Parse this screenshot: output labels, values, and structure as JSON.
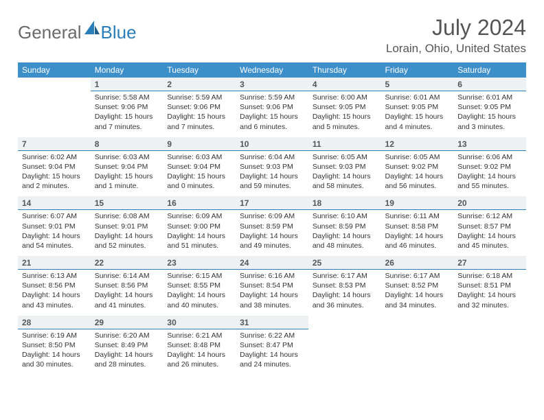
{
  "logo": {
    "text1": "General",
    "text2": "Blue",
    "color1": "#6a6a6a",
    "color2": "#2a7fb8"
  },
  "title": "July 2024",
  "location": "Lorain, Ohio, United States",
  "header_bg": "#3d8fc9",
  "daynum_bg": "#eef1f3",
  "daynum_border": "#2a7fb8",
  "days_of_week": [
    "Sunday",
    "Monday",
    "Tuesday",
    "Wednesday",
    "Thursday",
    "Friday",
    "Saturday"
  ],
  "weeks": [
    [
      {
        "day": "",
        "sunrise": "",
        "sunset": "",
        "daylight": ""
      },
      {
        "day": "1",
        "sunrise": "Sunrise: 5:58 AM",
        "sunset": "Sunset: 9:06 PM",
        "daylight": "Daylight: 15 hours and 7 minutes."
      },
      {
        "day": "2",
        "sunrise": "Sunrise: 5:59 AM",
        "sunset": "Sunset: 9:06 PM",
        "daylight": "Daylight: 15 hours and 7 minutes."
      },
      {
        "day": "3",
        "sunrise": "Sunrise: 5:59 AM",
        "sunset": "Sunset: 9:06 PM",
        "daylight": "Daylight: 15 hours and 6 minutes."
      },
      {
        "day": "4",
        "sunrise": "Sunrise: 6:00 AM",
        "sunset": "Sunset: 9:05 PM",
        "daylight": "Daylight: 15 hours and 5 minutes."
      },
      {
        "day": "5",
        "sunrise": "Sunrise: 6:01 AM",
        "sunset": "Sunset: 9:05 PM",
        "daylight": "Daylight: 15 hours and 4 minutes."
      },
      {
        "day": "6",
        "sunrise": "Sunrise: 6:01 AM",
        "sunset": "Sunset: 9:05 PM",
        "daylight": "Daylight: 15 hours and 3 minutes."
      }
    ],
    [
      {
        "day": "7",
        "sunrise": "Sunrise: 6:02 AM",
        "sunset": "Sunset: 9:04 PM",
        "daylight": "Daylight: 15 hours and 2 minutes."
      },
      {
        "day": "8",
        "sunrise": "Sunrise: 6:03 AM",
        "sunset": "Sunset: 9:04 PM",
        "daylight": "Daylight: 15 hours and 1 minute."
      },
      {
        "day": "9",
        "sunrise": "Sunrise: 6:03 AM",
        "sunset": "Sunset: 9:04 PM",
        "daylight": "Daylight: 15 hours and 0 minutes."
      },
      {
        "day": "10",
        "sunrise": "Sunrise: 6:04 AM",
        "sunset": "Sunset: 9:03 PM",
        "daylight": "Daylight: 14 hours and 59 minutes."
      },
      {
        "day": "11",
        "sunrise": "Sunrise: 6:05 AM",
        "sunset": "Sunset: 9:03 PM",
        "daylight": "Daylight: 14 hours and 58 minutes."
      },
      {
        "day": "12",
        "sunrise": "Sunrise: 6:05 AM",
        "sunset": "Sunset: 9:02 PM",
        "daylight": "Daylight: 14 hours and 56 minutes."
      },
      {
        "day": "13",
        "sunrise": "Sunrise: 6:06 AM",
        "sunset": "Sunset: 9:02 PM",
        "daylight": "Daylight: 14 hours and 55 minutes."
      }
    ],
    [
      {
        "day": "14",
        "sunrise": "Sunrise: 6:07 AM",
        "sunset": "Sunset: 9:01 PM",
        "daylight": "Daylight: 14 hours and 54 minutes."
      },
      {
        "day": "15",
        "sunrise": "Sunrise: 6:08 AM",
        "sunset": "Sunset: 9:01 PM",
        "daylight": "Daylight: 14 hours and 52 minutes."
      },
      {
        "day": "16",
        "sunrise": "Sunrise: 6:09 AM",
        "sunset": "Sunset: 9:00 PM",
        "daylight": "Daylight: 14 hours and 51 minutes."
      },
      {
        "day": "17",
        "sunrise": "Sunrise: 6:09 AM",
        "sunset": "Sunset: 8:59 PM",
        "daylight": "Daylight: 14 hours and 49 minutes."
      },
      {
        "day": "18",
        "sunrise": "Sunrise: 6:10 AM",
        "sunset": "Sunset: 8:59 PM",
        "daylight": "Daylight: 14 hours and 48 minutes."
      },
      {
        "day": "19",
        "sunrise": "Sunrise: 6:11 AM",
        "sunset": "Sunset: 8:58 PM",
        "daylight": "Daylight: 14 hours and 46 minutes."
      },
      {
        "day": "20",
        "sunrise": "Sunrise: 6:12 AM",
        "sunset": "Sunset: 8:57 PM",
        "daylight": "Daylight: 14 hours and 45 minutes."
      }
    ],
    [
      {
        "day": "21",
        "sunrise": "Sunrise: 6:13 AM",
        "sunset": "Sunset: 8:56 PM",
        "daylight": "Daylight: 14 hours and 43 minutes."
      },
      {
        "day": "22",
        "sunrise": "Sunrise: 6:14 AM",
        "sunset": "Sunset: 8:56 PM",
        "daylight": "Daylight: 14 hours and 41 minutes."
      },
      {
        "day": "23",
        "sunrise": "Sunrise: 6:15 AM",
        "sunset": "Sunset: 8:55 PM",
        "daylight": "Daylight: 14 hours and 40 minutes."
      },
      {
        "day": "24",
        "sunrise": "Sunrise: 6:16 AM",
        "sunset": "Sunset: 8:54 PM",
        "daylight": "Daylight: 14 hours and 38 minutes."
      },
      {
        "day": "25",
        "sunrise": "Sunrise: 6:17 AM",
        "sunset": "Sunset: 8:53 PM",
        "daylight": "Daylight: 14 hours and 36 minutes."
      },
      {
        "day": "26",
        "sunrise": "Sunrise: 6:17 AM",
        "sunset": "Sunset: 8:52 PM",
        "daylight": "Daylight: 14 hours and 34 minutes."
      },
      {
        "day": "27",
        "sunrise": "Sunrise: 6:18 AM",
        "sunset": "Sunset: 8:51 PM",
        "daylight": "Daylight: 14 hours and 32 minutes."
      }
    ],
    [
      {
        "day": "28",
        "sunrise": "Sunrise: 6:19 AM",
        "sunset": "Sunset: 8:50 PM",
        "daylight": "Daylight: 14 hours and 30 minutes."
      },
      {
        "day": "29",
        "sunrise": "Sunrise: 6:20 AM",
        "sunset": "Sunset: 8:49 PM",
        "daylight": "Daylight: 14 hours and 28 minutes."
      },
      {
        "day": "30",
        "sunrise": "Sunrise: 6:21 AM",
        "sunset": "Sunset: 8:48 PM",
        "daylight": "Daylight: 14 hours and 26 minutes."
      },
      {
        "day": "31",
        "sunrise": "Sunrise: 6:22 AM",
        "sunset": "Sunset: 8:47 PM",
        "daylight": "Daylight: 14 hours and 24 minutes."
      },
      {
        "day": "",
        "sunrise": "",
        "sunset": "",
        "daylight": ""
      },
      {
        "day": "",
        "sunrise": "",
        "sunset": "",
        "daylight": ""
      },
      {
        "day": "",
        "sunrise": "",
        "sunset": "",
        "daylight": ""
      }
    ]
  ]
}
